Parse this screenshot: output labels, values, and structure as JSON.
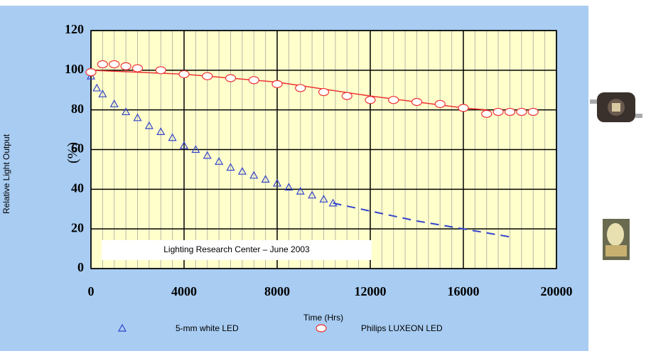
{
  "chart_data": {
    "type": "scatter",
    "xlabel": "Time (Hrs)",
    "ylabel": "Relative Light Output",
    "ylabel_unit": "(%)",
    "annotation": "Lighting Research Center – June 2003",
    "xlim": [
      0,
      20000
    ],
    "ylim": [
      0,
      120
    ],
    "xticks": [
      0,
      4000,
      8000,
      12000,
      16000,
      20000
    ],
    "yticks": [
      0,
      20,
      40,
      60,
      80,
      100,
      120
    ],
    "grid": true,
    "minor_grid_step": 500,
    "series": [
      {
        "name": "5-mm white LED",
        "color": "#3344cc",
        "marker": "triangle",
        "x": [
          0,
          250,
          500,
          1000,
          1500,
          2000,
          2500,
          3000,
          3500,
          4000,
          4500,
          5000,
          5500,
          6000,
          6500,
          7000,
          7500,
          8000,
          8500,
          9000,
          9500,
          10000,
          10400
        ],
        "values": [
          97,
          91,
          88,
          83,
          79,
          76,
          72,
          69,
          66,
          62,
          60,
          57,
          54,
          51,
          49,
          47,
          45,
          43,
          41,
          39,
          37,
          35,
          33
        ],
        "projection": {
          "x": [
            10400,
            12000,
            14000,
            16000,
            18000
          ],
          "values": [
            33,
            29,
            24,
            20,
            16
          ]
        }
      },
      {
        "name": "Philips LUXEON LED",
        "color": "#ee3333",
        "marker": "circle",
        "x": [
          0,
          500,
          1000,
          1500,
          2000,
          3000,
          4000,
          5000,
          6000,
          7000,
          8000,
          9000,
          10000,
          11000,
          12000,
          13000,
          14000,
          15000,
          16000,
          17000,
          17500,
          18000,
          18500,
          19000
        ],
        "values": [
          99,
          103,
          103,
          102,
          101,
          100,
          98,
          97,
          96,
          95,
          93,
          91,
          89,
          87,
          85,
          85,
          84,
          83,
          81,
          78,
          79,
          79,
          79,
          79
        ],
        "trend": {
          "x": [
            0,
            4000,
            8000,
            12000,
            16000,
            17000
          ],
          "values": [
            100,
            98,
            94,
            87,
            81,
            80
          ]
        }
      }
    ]
  }
}
